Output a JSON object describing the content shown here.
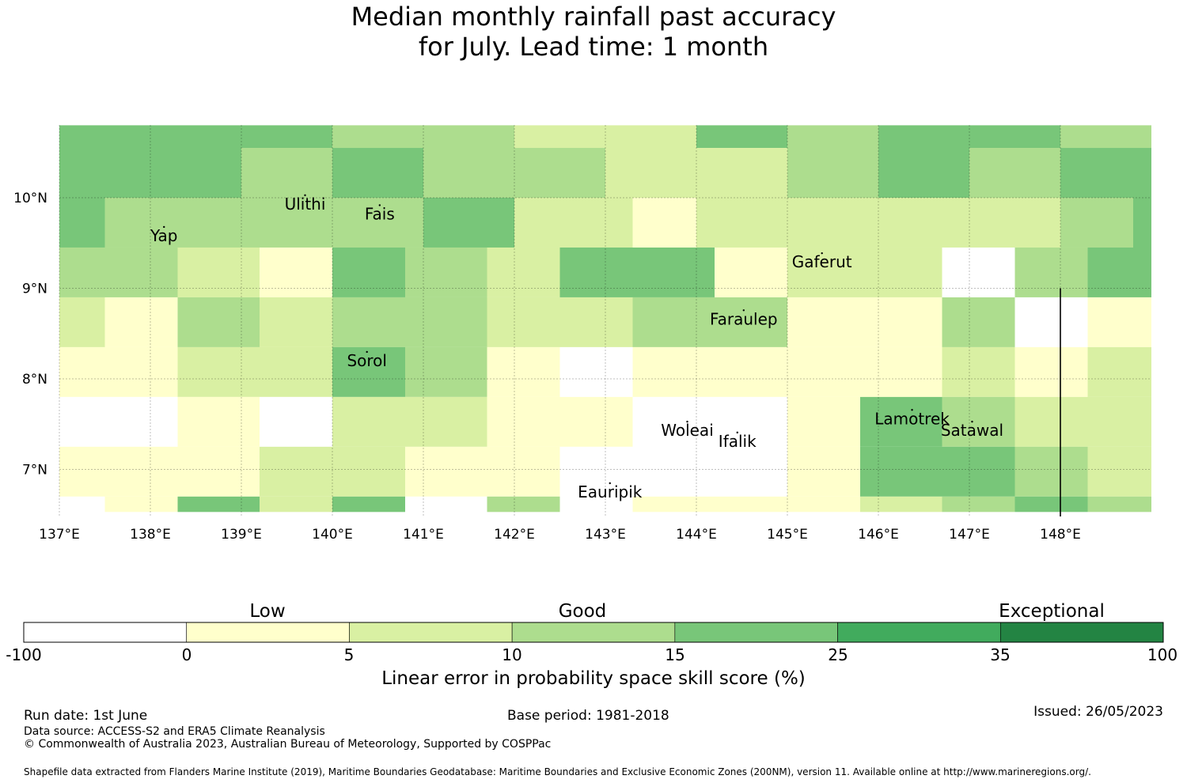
{
  "title_line1": "Median monthly rainfall past accuracy",
  "title_line2": "for July. Lead time: 1 month",
  "map": {
    "lon_range": [
      137.0,
      149.0
    ],
    "lat_range": [
      6.5,
      10.8
    ],
    "lon_ticks": [
      {
        "value": 137,
        "label": "137°E"
      },
      {
        "value": 138,
        "label": "138°E"
      },
      {
        "value": 139,
        "label": "139°E"
      },
      {
        "value": 140,
        "label": "140°E"
      },
      {
        "value": 141,
        "label": "141°E"
      },
      {
        "value": 142,
        "label": "142°E"
      },
      {
        "value": 143,
        "label": "143°E"
      },
      {
        "value": 144,
        "label": "144°E"
      },
      {
        "value": 145,
        "label": "145°E"
      },
      {
        "value": 146,
        "label": "146°E"
      },
      {
        "value": 147,
        "label": "147°E"
      },
      {
        "value": 148,
        "label": "148°E"
      }
    ],
    "lat_ticks": [
      {
        "value": 10,
        "label": "10°N"
      },
      {
        "value": 9,
        "label": "9°N"
      },
      {
        "value": 8,
        "label": "8°N"
      },
      {
        "value": 7,
        "label": "7°N"
      }
    ],
    "islands": [
      {
        "name": "Yap",
        "lon": 138.15,
        "lat": 9.52
      },
      {
        "name": "Ulithi",
        "lon": 139.7,
        "lat": 9.87
      },
      {
        "name": "Fais",
        "lon": 140.52,
        "lat": 9.76
      },
      {
        "name": "Gaferut",
        "lon": 145.38,
        "lat": 9.23
      },
      {
        "name": "Faraulep",
        "lon": 144.52,
        "lat": 8.6
      },
      {
        "name": "Sorol",
        "lon": 140.38,
        "lat": 8.14
      },
      {
        "name": "Woleai",
        "lon": 143.9,
        "lat": 7.37
      },
      {
        "name": "Ifalik",
        "lon": 144.45,
        "lat": 7.25
      },
      {
        "name": "Lamotrek",
        "lon": 146.37,
        "lat": 7.5
      },
      {
        "name": "Satawal",
        "lon": 147.03,
        "lat": 7.37
      },
      {
        "name": "Eauripik",
        "lon": 143.05,
        "lat": 6.69
      }
    ],
    "island_labels": {
      "Yap": "Yap",
      "Ulithi": "Ulithi",
      "Fais": "Fais",
      "Gaferut": "Gaferut",
      "Faraulep": "Faraulep",
      "Sorol": "Sorol",
      "Woleai": "Woleai",
      "Ifalik": "Ifalik",
      "Lamotrek": "Lamotrek",
      "Satawal": "Satawal",
      "Eauripik": "Eauripik"
    },
    "boundary_line_lon": 148.0,
    "boundary_line_lat_range": [
      6.5,
      9.0
    ],
    "cells": [
      {
        "x": [
          137.0,
          138.0
        ],
        "y": [
          10.0,
          10.8
        ],
        "c": 4
      },
      {
        "x": [
          138.0,
          139.0
        ],
        "y": [
          10.0,
          10.8
        ],
        "c": 4
      },
      {
        "x": [
          139.0,
          140.0
        ],
        "y": [
          10.55,
          10.8
        ],
        "c": 4
      },
      {
        "x": [
          139.0,
          140.0
        ],
        "y": [
          10.0,
          10.55
        ],
        "c": 3
      },
      {
        "x": [
          140.0,
          141.0
        ],
        "y": [
          10.55,
          10.8
        ],
        "c": 3
      },
      {
        "x": [
          140.0,
          141.0
        ],
        "y": [
          10.0,
          10.55
        ],
        "c": 4
      },
      {
        "x": [
          141.0,
          142.0
        ],
        "y": [
          10.0,
          10.8
        ],
        "c": 3
      },
      {
        "x": [
          142.0,
          143.0
        ],
        "y": [
          10.55,
          10.8
        ],
        "c": 2
      },
      {
        "x": [
          142.0,
          143.0
        ],
        "y": [
          10.0,
          10.55
        ],
        "c": 3
      },
      {
        "x": [
          143.0,
          144.0
        ],
        "y": [
          10.0,
          10.8
        ],
        "c": 2
      },
      {
        "x": [
          144.0,
          145.0
        ],
        "y": [
          10.55,
          10.8
        ],
        "c": 4
      },
      {
        "x": [
          144.0,
          145.0
        ],
        "y": [
          10.0,
          10.55
        ],
        "c": 2
      },
      {
        "x": [
          145.0,
          146.0
        ],
        "y": [
          10.0,
          10.8
        ],
        "c": 3
      },
      {
        "x": [
          146.0,
          147.0
        ],
        "y": [
          10.0,
          10.8
        ],
        "c": 4
      },
      {
        "x": [
          147.0,
          148.0
        ],
        "y": [
          10.55,
          10.8
        ],
        "c": 4
      },
      {
        "x": [
          147.0,
          148.0
        ],
        "y": [
          10.0,
          10.55
        ],
        "c": 3
      },
      {
        "x": [
          148.0,
          149.0
        ],
        "y": [
          10.55,
          10.8
        ],
        "c": 3
      },
      {
        "x": [
          148.0,
          149.0
        ],
        "y": [
          10.0,
          10.55
        ],
        "c": 4
      },
      {
        "x": [
          137.0,
          137.5
        ],
        "y": [
          9.45,
          10.0
        ],
        "c": 4
      },
      {
        "x": [
          137.5,
          138.0
        ],
        "y": [
          9.45,
          10.0
        ],
        "c": 3
      },
      {
        "x": [
          138.0,
          140.0
        ],
        "y": [
          9.45,
          10.0
        ],
        "c": 3
      },
      {
        "x": [
          140.0,
          141.0
        ],
        "y": [
          9.45,
          10.0
        ],
        "c": 3
      },
      {
        "x": [
          141.0,
          142.0
        ],
        "y": [
          9.45,
          10.0
        ],
        "c": 4
      },
      {
        "x": [
          142.0,
          143.3
        ],
        "y": [
          9.45,
          10.0
        ],
        "c": 2
      },
      {
        "x": [
          143.3,
          144.0
        ],
        "y": [
          9.45,
          10.0
        ],
        "c": 1
      },
      {
        "x": [
          144.0,
          148.0
        ],
        "y": [
          9.45,
          10.0
        ],
        "c": 2
      },
      {
        "x": [
          148.0,
          149.0
        ],
        "y": [
          9.45,
          10.0
        ],
        "c": 3
      },
      {
        "x": [
          148.8,
          149.0
        ],
        "y": [
          9.45,
          10.0
        ],
        "c": 4
      },
      {
        "x": [
          137.0,
          138.3
        ],
        "y": [
          8.9,
          9.45
        ],
        "c": 3
      },
      {
        "x": [
          138.3,
          139.2
        ],
        "y": [
          8.9,
          9.45
        ],
        "c": 2
      },
      {
        "x": [
          139.2,
          140.0
        ],
        "y": [
          8.9,
          9.45
        ],
        "c": 1
      },
      {
        "x": [
          140.0,
          140.8
        ],
        "y": [
          8.9,
          9.45
        ],
        "c": 4
      },
      {
        "x": [
          140.8,
          141.7
        ],
        "y": [
          8.9,
          9.45
        ],
        "c": 3
      },
      {
        "x": [
          141.7,
          142.5
        ],
        "y": [
          8.9,
          9.45
        ],
        "c": 2
      },
      {
        "x": [
          142.5,
          144.2
        ],
        "y": [
          8.9,
          9.45
        ],
        "c": 4
      },
      {
        "x": [
          144.2,
          145.0
        ],
        "y": [
          8.9,
          9.45
        ],
        "c": 1
      },
      {
        "x": [
          145.0,
          146.7
        ],
        "y": [
          8.9,
          9.45
        ],
        "c": 2
      },
      {
        "x": [
          146.7,
          147.5
        ],
        "y": [
          8.9,
          9.45
        ],
        "c": 0
      },
      {
        "x": [
          147.5,
          148.3
        ],
        "y": [
          8.9,
          9.45
        ],
        "c": 3
      },
      {
        "x": [
          148.3,
          149.0
        ],
        "y": [
          8.9,
          9.45
        ],
        "c": 4
      },
      {
        "x": [
          137.0,
          137.5
        ],
        "y": [
          8.35,
          8.9
        ],
        "c": 2
      },
      {
        "x": [
          137.5,
          138.3
        ],
        "y": [
          8.35,
          8.9
        ],
        "c": 1
      },
      {
        "x": [
          138.3,
          139.2
        ],
        "y": [
          8.35,
          8.9
        ],
        "c": 3
      },
      {
        "x": [
          139.2,
          140.0
        ],
        "y": [
          8.35,
          8.9
        ],
        "c": 2
      },
      {
        "x": [
          140.0,
          141.7
        ],
        "y": [
          8.35,
          8.9
        ],
        "c": 3
      },
      {
        "x": [
          141.7,
          143.3
        ],
        "y": [
          8.35,
          8.9
        ],
        "c": 2
      },
      {
        "x": [
          143.3,
          145.0
        ],
        "y": [
          8.35,
          8.9
        ],
        "c": 3
      },
      {
        "x": [
          145.0,
          146.7
        ],
        "y": [
          8.35,
          8.9
        ],
        "c": 1
      },
      {
        "x": [
          146.7,
          147.5
        ],
        "y": [
          8.35,
          8.9
        ],
        "c": 3
      },
      {
        "x": [
          147.5,
          148.3
        ],
        "y": [
          8.35,
          8.9
        ],
        "c": 0
      },
      {
        "x": [
          148.3,
          149.0
        ],
        "y": [
          8.35,
          8.9
        ],
        "c": 1
      },
      {
        "x": [
          137.0,
          138.3
        ],
        "y": [
          7.8,
          8.35
        ],
        "c": 1
      },
      {
        "x": [
          138.3,
          140.0
        ],
        "y": [
          7.8,
          8.35
        ],
        "c": 2
      },
      {
        "x": [
          140.0,
          140.8
        ],
        "y": [
          7.8,
          8.35
        ],
        "c": 4
      },
      {
        "x": [
          140.8,
          141.7
        ],
        "y": [
          7.8,
          8.35
        ],
        "c": 3
      },
      {
        "x": [
          141.7,
          142.5
        ],
        "y": [
          7.8,
          8.35
        ],
        "c": 1
      },
      {
        "x": [
          142.5,
          143.3
        ],
        "y": [
          7.8,
          8.35
        ],
        "c": 0
      },
      {
        "x": [
          143.3,
          146.7
        ],
        "y": [
          7.8,
          8.35
        ],
        "c": 1
      },
      {
        "x": [
          146.7,
          147.5
        ],
        "y": [
          7.8,
          8.35
        ],
        "c": 2
      },
      {
        "x": [
          147.5,
          148.3
        ],
        "y": [
          7.8,
          8.35
        ],
        "c": 1
      },
      {
        "x": [
          148.3,
          149.0
        ],
        "y": [
          7.8,
          8.35
        ],
        "c": 2
      },
      {
        "x": [
          137.0,
          138.3
        ],
        "y": [
          7.25,
          7.8
        ],
        "c": 0
      },
      {
        "x": [
          138.3,
          139.2
        ],
        "y": [
          7.25,
          7.8
        ],
        "c": 1
      },
      {
        "x": [
          139.2,
          140.0
        ],
        "y": [
          7.25,
          7.8
        ],
        "c": 0
      },
      {
        "x": [
          140.0,
          141.7
        ],
        "y": [
          7.25,
          7.8
        ],
        "c": 2
      },
      {
        "x": [
          141.7,
          143.3
        ],
        "y": [
          7.25,
          7.8
        ],
        "c": 1
      },
      {
        "x": [
          143.3,
          145.0
        ],
        "y": [
          7.25,
          7.8
        ],
        "c": 0
      },
      {
        "x": [
          145.0,
          145.8
        ],
        "y": [
          7.25,
          7.8
        ],
        "c": 1
      },
      {
        "x": [
          145.8,
          146.7
        ],
        "y": [
          7.25,
          7.8
        ],
        "c": 4
      },
      {
        "x": [
          146.7,
          147.5
        ],
        "y": [
          7.25,
          7.8
        ],
        "c": 3
      },
      {
        "x": [
          147.5,
          149.0
        ],
        "y": [
          7.25,
          7.8
        ],
        "c": 2
      },
      {
        "x": [
          137.0,
          139.2
        ],
        "y": [
          6.7,
          7.25
        ],
        "c": 1
      },
      {
        "x": [
          139.2,
          140.8
        ],
        "y": [
          6.7,
          7.25
        ],
        "c": 2
      },
      {
        "x": [
          140.8,
          142.5
        ],
        "y": [
          6.7,
          7.25
        ],
        "c": 1
      },
      {
        "x": [
          142.5,
          145.0
        ],
        "y": [
          6.7,
          7.25
        ],
        "c": 0
      },
      {
        "x": [
          145.0,
          145.8
        ],
        "y": [
          6.7,
          7.25
        ],
        "c": 1
      },
      {
        "x": [
          145.8,
          147.5
        ],
        "y": [
          6.7,
          7.25
        ],
        "c": 4
      },
      {
        "x": [
          147.5,
          148.3
        ],
        "y": [
          6.7,
          7.25
        ],
        "c": 3
      },
      {
        "x": [
          148.3,
          149.0
        ],
        "y": [
          6.7,
          7.25
        ],
        "c": 2
      },
      {
        "x": [
          137.0,
          137.5
        ],
        "y": [
          6.53,
          6.7
        ],
        "c": 0
      },
      {
        "x": [
          137.5,
          138.3
        ],
        "y": [
          6.53,
          6.7
        ],
        "c": 1
      },
      {
        "x": [
          138.3,
          139.2
        ],
        "y": [
          6.53,
          6.7
        ],
        "c": 4
      },
      {
        "x": [
          139.2,
          140.0
        ],
        "y": [
          6.53,
          6.7
        ],
        "c": 2
      },
      {
        "x": [
          140.0,
          140.8
        ],
        "y": [
          6.53,
          6.7
        ],
        "c": 4
      },
      {
        "x": [
          140.8,
          141.7
        ],
        "y": [
          6.53,
          6.7
        ],
        "c": 0
      },
      {
        "x": [
          141.7,
          142.5
        ],
        "y": [
          6.53,
          6.7
        ],
        "c": 3
      },
      {
        "x": [
          142.5,
          143.3
        ],
        "y": [
          6.53,
          6.7
        ],
        "c": 0
      },
      {
        "x": [
          143.3,
          145.0
        ],
        "y": [
          6.53,
          6.7
        ],
        "c": 1
      },
      {
        "x": [
          145.0,
          145.8
        ],
        "y": [
          6.53,
          6.7
        ],
        "c": 1
      },
      {
        "x": [
          145.8,
          146.7
        ],
        "y": [
          6.53,
          6.7
        ],
        "c": 2
      },
      {
        "x": [
          146.7,
          147.5
        ],
        "y": [
          6.53,
          6.7
        ],
        "c": 3
      },
      {
        "x": [
          147.5,
          148.3
        ],
        "y": [
          6.53,
          6.7
        ],
        "c": 4
      },
      {
        "x": [
          148.3,
          149.0
        ],
        "y": [
          6.53,
          6.7
        ],
        "c": 3
      }
    ]
  },
  "colorbar": {
    "colors": [
      "#ffffff",
      "#ffffcc",
      "#d9f0a3",
      "#addd8e",
      "#78c679",
      "#41ab5d",
      "#238443"
    ],
    "ticks": [
      "-100",
      "0",
      "5",
      "10",
      "15",
      "25",
      "35",
      "100"
    ],
    "categories": [
      "Low",
      "Good",
      "Exceptional"
    ],
    "label": "Linear error in probability space skill score (%)"
  },
  "footer": {
    "run_date": "Run date: 1st June",
    "base_period": "Base period: 1981-2018",
    "issued": "Issued: 26/05/2023",
    "data_source": "Data source: ACCESS-S2 and ERA5 Climate Reanalysis",
    "copyright": "© Commonwealth of Australia 2023, Australian Bureau of Meteorology, Supported by COSPPac",
    "shapefile": "Shapefile data extracted from Flanders Marine Institute (2019), Maritime Boundaries Geodatabase: Maritime Boundaries and Exclusive Economic Zones (200NM), version 11. Available online at http://www.marineregions.org/."
  }
}
